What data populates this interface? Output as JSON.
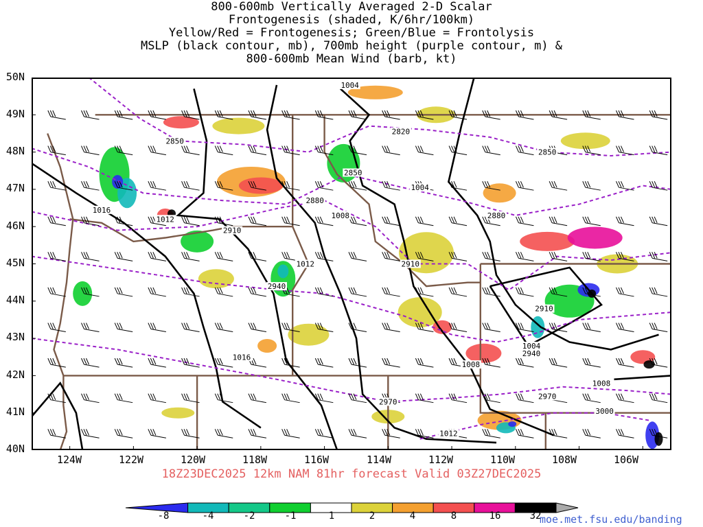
{
  "title_lines": [
    "800-600mb Vertically Averaged 2-D Scalar",
    "Frontogenesis (shaded, K/6hr/100km)",
    "Yellow/Red = Frontogenesis;  Green/Blue = Frontolysis",
    "MSLP (black contour, mb), 700mb height (purple contour, m) &",
    "800-600mb Mean Wind (barb, kt)"
  ],
  "lat_labels": [
    "50N",
    "49N",
    "48N",
    "47N",
    "46N",
    "45N",
    "44N",
    "43N",
    "42N",
    "41N",
    "40N"
  ],
  "lon_labels": [
    "124W",
    "122W",
    "120W",
    "118W",
    "116W",
    "114W",
    "112W",
    "110W",
    "108W",
    "106W"
  ],
  "footer": "18Z23DEC2025 12km NAM 81hr forecast Valid 03Z27DEC2025",
  "credit": "moe.met.fsu.edu/banding",
  "colorbar": {
    "ticks": [
      "-8",
      "-4",
      "-2",
      "-1",
      "1",
      "2",
      "4",
      "8",
      "16",
      "32"
    ],
    "colors": [
      "#2b2bee",
      "#12b9b9",
      "#14c888",
      "#10cf30",
      "#ffffff",
      "#dcd23a",
      "#f4a030",
      "#f45050",
      "#e8109a",
      "#000000",
      "#aaaaaa"
    ]
  },
  "map": {
    "lat_range": [
      40,
      50
    ],
    "lon_range": [
      -125.2,
      -105.1
    ],
    "isobars": [
      {
        "label": "1004",
        "lat": 49.8,
        "lon": -115.2
      },
      {
        "label": "1004",
        "lat": 47.05,
        "lon": -113.0
      },
      {
        "label": "1008",
        "lat": 46.3,
        "lon": -115.5
      },
      {
        "label": "1012",
        "lat": 45.0,
        "lon": -116.6
      },
      {
        "label": "1012",
        "lat": 46.2,
        "lon": -121.0
      },
      {
        "label": "1016",
        "lat": 46.45,
        "lon": -123.0
      },
      {
        "label": "1016",
        "lat": 42.5,
        "lon": -118.6
      },
      {
        "label": "1008",
        "lat": 42.3,
        "lon": -111.4
      },
      {
        "label": "1004",
        "lat": 42.8,
        "lon": -109.5
      },
      {
        "label": "1008",
        "lat": 41.8,
        "lon": -107.3
      },
      {
        "label": "1012",
        "lat": 40.45,
        "lon": -112.1
      }
    ],
    "heights": [
      {
        "label": "2850",
        "lat": 48.3,
        "lon": -120.7
      },
      {
        "label": "2820",
        "lat": 48.55,
        "lon": -113.6
      },
      {
        "label": "2850",
        "lat": 47.45,
        "lon": -115.1
      },
      {
        "label": "2850",
        "lat": 48.0,
        "lon": -109.0
      },
      {
        "label": "2880",
        "lat": 46.7,
        "lon": -116.3
      },
      {
        "label": "2880",
        "lat": 46.3,
        "lon": -110.6
      },
      {
        "label": "2910",
        "lat": 45.9,
        "lon": -118.9
      },
      {
        "label": "2910",
        "lat": 45.0,
        "lon": -113.3
      },
      {
        "label": "2910",
        "lat": 43.8,
        "lon": -109.1
      },
      {
        "label": "2940",
        "lat": 44.4,
        "lon": -117.5
      },
      {
        "label": "2940",
        "lat": 42.6,
        "lon": -109.5
      },
      {
        "label": "2970",
        "lat": 41.3,
        "lon": -114.0
      },
      {
        "label": "2970",
        "lat": 41.45,
        "lon": -109.0
      },
      {
        "label": "3000",
        "lat": 41.05,
        "lon": -107.2
      }
    ]
  }
}
